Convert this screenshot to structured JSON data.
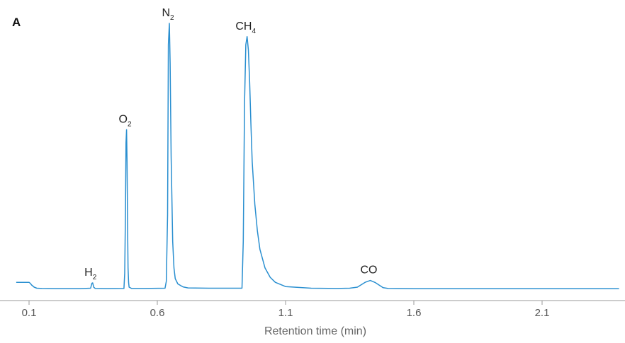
{
  "chart_data": {
    "type": "line",
    "panel_label": "A",
    "xlabel": "Retention time (min)",
    "ylabel": "",
    "xlim": [
      0.05,
      2.4
    ],
    "ylim": [
      0,
      100
    ],
    "grid": false,
    "x_ticks": [
      0.1,
      0.6,
      1.1,
      1.6,
      2.1
    ],
    "x_tick_labels": [
      "0.1",
      "0.6",
      "1.1",
      "1.6",
      "2.1"
    ],
    "line_color": "#2a8fd0",
    "series": [
      {
        "x": [
          0.05,
          0.1,
          0.105,
          0.11,
          0.12,
          0.13,
          0.15,
          0.2,
          0.3,
          0.34,
          0.345,
          0.348,
          0.352,
          0.358,
          0.4,
          0.47,
          0.473,
          0.476,
          0.478,
          0.48,
          0.482,
          0.484,
          0.486,
          0.488,
          0.49,
          0.5,
          0.55,
          0.63,
          0.635,
          0.64,
          0.643,
          0.647,
          0.65,
          0.654,
          0.66,
          0.665,
          0.67,
          0.68,
          0.7,
          0.72,
          0.8,
          0.93,
          0.935,
          0.94,
          0.945,
          0.95,
          0.955,
          0.96,
          0.965,
          0.97,
          0.98,
          0.99,
          1.0,
          1.02,
          1.04,
          1.06,
          1.1,
          1.2,
          1.3,
          1.35,
          1.38,
          1.41,
          1.43,
          1.45,
          1.48,
          1.5,
          1.6,
          2.0,
          2.4
        ],
        "y": [
          2.6,
          2.6,
          2.2,
          1.6,
          0.8,
          0.4,
          0.3,
          0.25,
          0.25,
          0.4,
          2.3,
          2.4,
          0.8,
          0.3,
          0.25,
          0.3,
          6,
          30,
          55,
          60,
          48,
          25,
          8,
          2.5,
          0.8,
          0.3,
          0.3,
          0.4,
          3,
          28,
          92,
          100,
          85,
          50,
          18,
          8,
          4,
          2,
          0.9,
          0.5,
          0.4,
          0.4,
          18,
          70,
          92,
          95,
          90,
          78,
          62,
          48,
          32,
          22,
          15,
          8,
          4.5,
          2.6,
          1.0,
          0.4,
          0.3,
          0.4,
          0.8,
          2.6,
          3.3,
          2.5,
          0.6,
          0.3,
          0.2,
          0.2,
          0.2
        ]
      }
    ],
    "annotations": [
      {
        "label": "H",
        "sub": "2",
        "x": 0.345,
        "y": 2.4
      },
      {
        "label": "O",
        "sub": "2",
        "x": 0.48,
        "y": 60
      },
      {
        "label": "N",
        "sub": "2",
        "x": 0.647,
        "y": 100
      },
      {
        "label": "CH",
        "sub": "4",
        "x": 0.95,
        "y": 95
      },
      {
        "label": "CO",
        "sub": "",
        "x": 1.43,
        "y": 3.3
      }
    ]
  }
}
